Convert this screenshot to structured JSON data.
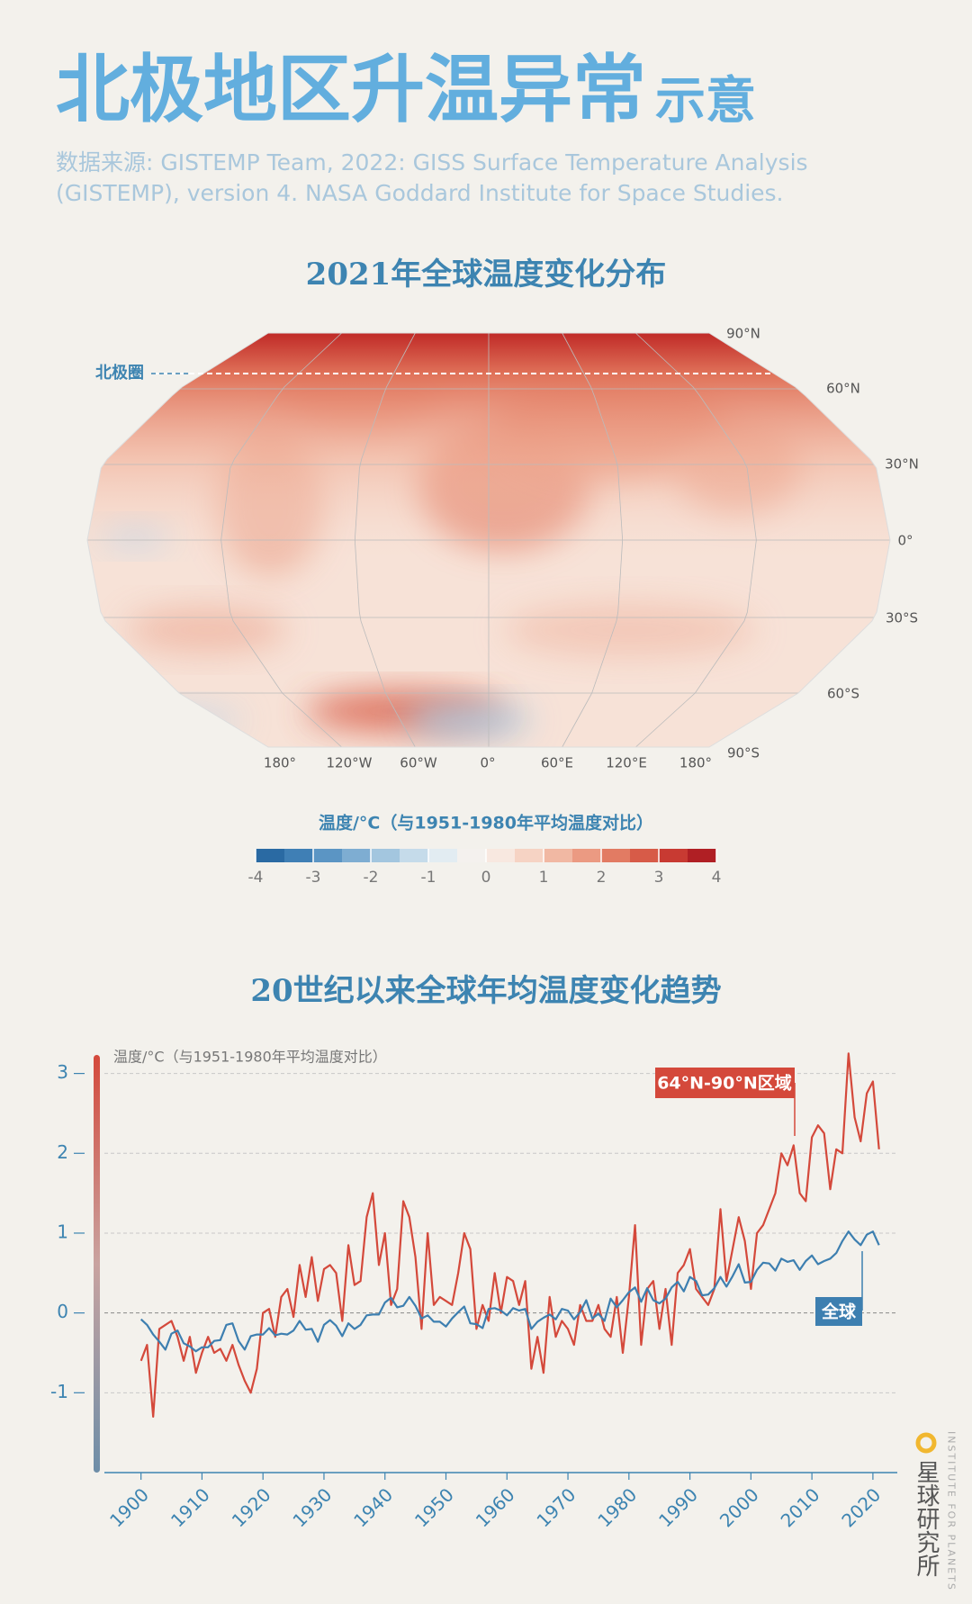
{
  "header": {
    "title": "北极地区升温异常",
    "title_suffix": "示意",
    "source": [
      "数据来源: GISTEMP Team, 2022: GISS Surface Temperature Analysis",
      "(GISTEMP), version 4. NASA Goddard Institute for Space Studies."
    ]
  },
  "chart_data": [
    {
      "type": "map",
      "title": "2021年全球温度变化分布",
      "arctic_label": "北极圈",
      "lat_labels": [
        "90°N",
        "60°N",
        "30°N",
        "0°",
        "30°S",
        "60°S",
        "90°S"
      ],
      "lon_labels": [
        "180°",
        "120°W",
        "60°W",
        "0°",
        "60°E",
        "120°E",
        "180°"
      ],
      "colorbar_title": "温度/°C（与1951-1980年平均温度对比）",
      "colorbar_lim": [
        -4,
        4
      ],
      "colorbar_ticks": [
        -4,
        -3,
        -2,
        -1,
        0,
        1,
        2,
        3,
        4
      ],
      "colors": [
        "#2a6aa3",
        "#3f7fb5",
        "#5b95c4",
        "#7eadd2",
        "#a3c6df",
        "#c5dbea",
        "#e2ecf2",
        "#f4f1ee",
        "#f8e8e0",
        "#f6d3c4",
        "#f1b8a3",
        "#eb9a82",
        "#e27b63",
        "#d75b48",
        "#c83a32",
        "#b01f24"
      ]
    },
    {
      "type": "line",
      "title": "20世纪以来全球年均温度变化趋势",
      "y_label": "温度/°C（与1951-1980年平均温度对比）",
      "xlim": [
        1894,
        2024
      ],
      "xticks": [
        1900,
        1910,
        1920,
        1930,
        1940,
        1950,
        1960,
        1970,
        1980,
        1990,
        2000,
        2010,
        2020
      ],
      "ylim": [
        -2,
        3.3
      ],
      "yticks": [
        -1,
        0,
        1,
        2,
        3
      ],
      "grid": true,
      "x": [
        1900,
        1901,
        1902,
        1903,
        1904,
        1905,
        1906,
        1907,
        1908,
        1909,
        1910,
        1911,
        1912,
        1913,
        1914,
        1915,
        1916,
        1917,
        1918,
        1919,
        1920,
        1921,
        1922,
        1923,
        1924,
        1925,
        1926,
        1927,
        1928,
        1929,
        1930,
        1931,
        1932,
        1933,
        1934,
        1935,
        1936,
        1937,
        1938,
        1939,
        1940,
        1941,
        1942,
        1943,
        1944,
        1945,
        1946,
        1947,
        1948,
        1949,
        1950,
        1951,
        1952,
        1953,
        1954,
        1955,
        1956,
        1957,
        1958,
        1959,
        1960,
        1961,
        1962,
        1963,
        1964,
        1965,
        1966,
        1967,
        1968,
        1969,
        1970,
        1971,
        1972,
        1973,
        1974,
        1975,
        1976,
        1977,
        1978,
        1979,
        1980,
        1981,
        1982,
        1983,
        1984,
        1985,
        1986,
        1987,
        1988,
        1989,
        1990,
        1991,
        1992,
        1993,
        1994,
        1995,
        1996,
        1997,
        1998,
        1999,
        2000,
        2001,
        2002,
        2003,
        2004,
        2005,
        2006,
        2007,
        2008,
        2009,
        2010,
        2011,
        2012,
        2013,
        2014,
        2015,
        2016,
        2017,
        2018,
        2019,
        2020,
        2021
      ],
      "series": [
        {
          "name": "64°N-90°N区域",
          "color": "#d4493b",
          "values": [
            -0.6,
            -0.4,
            -1.3,
            -0.2,
            -0.15,
            -0.1,
            -0.3,
            -0.6,
            -0.3,
            -0.75,
            -0.5,
            -0.3,
            -0.5,
            -0.45,
            -0.6,
            -0.4,
            -0.65,
            -0.85,
            -1.0,
            -0.7,
            0.0,
            0.05,
            -0.3,
            0.2,
            0.3,
            -0.05,
            0.6,
            0.2,
            0.7,
            0.15,
            0.55,
            0.6,
            0.5,
            -0.1,
            0.85,
            0.35,
            0.4,
            1.2,
            1.5,
            0.6,
            1.0,
            0.1,
            0.3,
            1.4,
            1.2,
            0.7,
            -0.2,
            1.0,
            0.1,
            0.2,
            0.15,
            0.1,
            0.5,
            1.0,
            0.8,
            -0.2,
            0.1,
            -0.1,
            0.5,
            0.0,
            0.45,
            0.4,
            0.1,
            0.4,
            -0.7,
            -0.3,
            -0.75,
            0.2,
            -0.3,
            -0.1,
            -0.2,
            -0.4,
            0.1,
            -0.1,
            -0.1,
            0.1,
            -0.2,
            -0.3,
            0.2,
            -0.5,
            0.2,
            1.1,
            -0.4,
            0.3,
            0.4,
            -0.2,
            0.3,
            -0.4,
            0.5,
            0.6,
            0.8,
            0.3,
            0.2,
            0.1,
            0.3,
            1.3,
            0.4,
            0.8,
            1.2,
            0.9,
            0.3,
            1.0,
            1.1,
            1.3,
            1.5,
            2.0,
            1.85,
            2.1,
            1.5,
            1.4,
            2.2,
            2.35,
            2.25,
            1.55,
            2.05,
            2.0,
            3.25,
            2.45,
            2.15,
            2.75,
            2.9,
            2.05
          ]
        },
        {
          "name": "全球",
          "color": "#3d7fb0",
          "values": [
            -0.08,
            -0.15,
            -0.27,
            -0.36,
            -0.46,
            -0.26,
            -0.22,
            -0.38,
            -0.42,
            -0.48,
            -0.43,
            -0.43,
            -0.35,
            -0.34,
            -0.15,
            -0.13,
            -0.35,
            -0.46,
            -0.29,
            -0.27,
            -0.27,
            -0.19,
            -0.28,
            -0.26,
            -0.27,
            -0.22,
            -0.1,
            -0.21,
            -0.2,
            -0.36,
            -0.15,
            -0.09,
            -0.16,
            -0.29,
            -0.13,
            -0.2,
            -0.15,
            -0.03,
            -0.02,
            -0.02,
            0.13,
            0.19,
            0.07,
            0.09,
            0.2,
            0.09,
            -0.07,
            -0.03,
            -0.11,
            -0.11,
            -0.17,
            -0.07,
            0.01,
            0.08,
            -0.13,
            -0.14,
            -0.19,
            0.05,
            0.06,
            0.03,
            -0.03,
            0.06,
            0.03,
            0.05,
            -0.2,
            -0.11,
            -0.06,
            -0.02,
            -0.08,
            0.05,
            0.03,
            -0.08,
            0.01,
            0.16,
            -0.07,
            -0.01,
            -0.1,
            0.18,
            0.07,
            0.16,
            0.26,
            0.32,
            0.14,
            0.31,
            0.16,
            0.12,
            0.18,
            0.32,
            0.39,
            0.27,
            0.45,
            0.4,
            0.22,
            0.23,
            0.31,
            0.45,
            0.33,
            0.46,
            0.61,
            0.38,
            0.39,
            0.54,
            0.63,
            0.62,
            0.53,
            0.68,
            0.64,
            0.66,
            0.54,
            0.65,
            0.72,
            0.61,
            0.65,
            0.68,
            0.75,
            0.9,
            1.02,
            0.92,
            0.85,
            0.98,
            1.02,
            0.85
          ]
        }
      ]
    }
  ],
  "logo": {
    "name": "星球研究所",
    "english": "INSTITUTE FOR PLANETS"
  }
}
